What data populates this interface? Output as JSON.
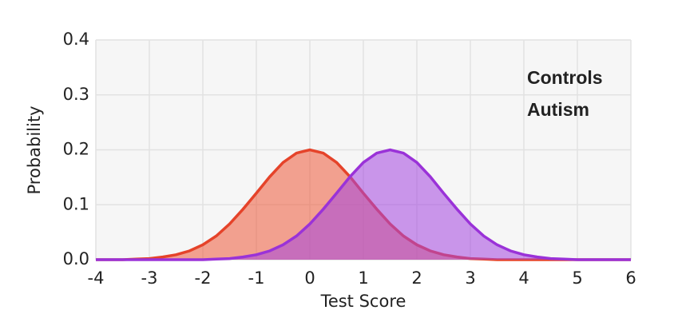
{
  "chart_data": {
    "type": "area",
    "xlabel": "Test Score",
    "ylabel": "Probability",
    "x": [
      -4,
      -3.75,
      -3.5,
      -3.25,
      -3,
      -2.75,
      -2.5,
      -2.25,
      -2,
      -1.75,
      -1.5,
      -1.25,
      -1,
      -0.75,
      -0.5,
      -0.25,
      0,
      0.25,
      0.5,
      0.75,
      1,
      1.25,
      1.5,
      1.75,
      2,
      2.25,
      2.5,
      2.75,
      3,
      3.25,
      3.5,
      3.75,
      4,
      4.25,
      4.5,
      4.75,
      5,
      5.25,
      5.5,
      5.75,
      6
    ],
    "series": [
      {
        "name": "Controls",
        "color": "#e5432a",
        "fill": "#ee5a3a",
        "values": [
          0,
          0,
          0,
          0.001,
          0.002,
          0.005,
          0.009,
          0.016,
          0.027,
          0.043,
          0.065,
          0.092,
          0.121,
          0.151,
          0.177,
          0.194,
          0.2,
          0.194,
          0.177,
          0.151,
          0.121,
          0.092,
          0.065,
          0.043,
          0.027,
          0.016,
          0.009,
          0.005,
          0.002,
          0.001,
          0,
          0,
          0,
          0,
          0,
          0,
          0,
          0,
          0,
          0,
          0
        ]
      },
      {
        "name": "Autism",
        "color": "#9a32d8",
        "fill": "#a445e0",
        "values": [
          0,
          0,
          0,
          0,
          0,
          0,
          0,
          0,
          0,
          0.001,
          0.002,
          0.005,
          0.009,
          0.016,
          0.027,
          0.043,
          0.065,
          0.092,
          0.121,
          0.151,
          0.177,
          0.194,
          0.2,
          0.194,
          0.177,
          0.151,
          0.121,
          0.092,
          0.065,
          0.043,
          0.027,
          0.016,
          0.009,
          0.005,
          0.002,
          0.001,
          0,
          0,
          0,
          0,
          0
        ]
      }
    ],
    "xlim": [
      -4,
      6
    ],
    "xticks": [
      -4,
      -3,
      -2,
      -1,
      0,
      1,
      2,
      3,
      4,
      5,
      6
    ],
    "ylim": [
      0,
      0.4
    ],
    "yticks": [
      {
        "value": 0,
        "label": "0.0"
      },
      0.1,
      0.2,
      0.3,
      0.4
    ],
    "grid": true,
    "legend": "upper right"
  }
}
